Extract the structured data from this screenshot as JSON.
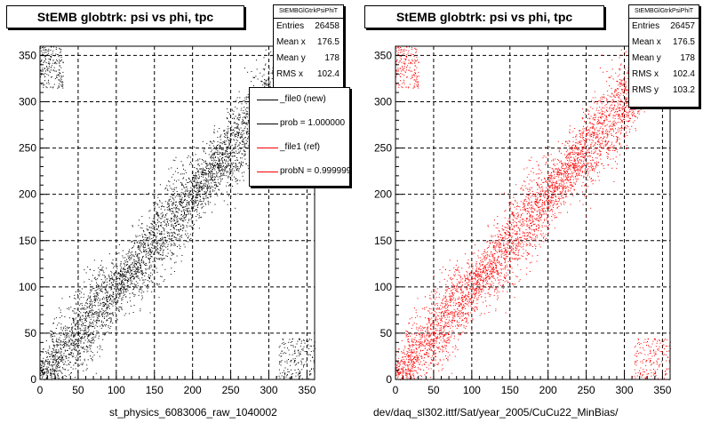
{
  "chart_data": [
    {
      "type": "scatter",
      "title": "StEMB globtrk: psi vs phi, tpc",
      "xlabel": "st_physics_6083006_raw_1040002",
      "ylabel": "",
      "xlim": [
        0,
        360
      ],
      "ylim": [
        0,
        360
      ],
      "x_ticks": [
        "0",
        "50",
        "100",
        "150",
        "200",
        "250",
        "300",
        "350"
      ],
      "y_ticks": [
        "0",
        "50",
        "100",
        "150",
        "200",
        "250",
        "300",
        "350"
      ],
      "grid": true,
      "color": "#000000",
      "distribution": "dense band along psi = phi, with wrap-around corners near (0,360) and (360,0)",
      "stats": {
        "name": "StEMBGlGtrkPsiPhiT",
        "entries": "26458",
        "mean_x": "176.5",
        "mean_y": "178",
        "rms_x": "102.4"
      },
      "legend": {
        "placement": "top-right",
        "entries": [
          {
            "label": "_file0 (new)",
            "color": "#000000"
          },
          {
            "label": "prob = 1.000000",
            "color": "#000000"
          },
          {
            "label": "_file1 (ref)",
            "color": "#ff0000"
          },
          {
            "label": "probN = 0.999999",
            "color": "#ff0000"
          }
        ]
      }
    },
    {
      "type": "scatter",
      "title": "StEMB globtrk: psi vs phi, tpc",
      "xlabel": "dev/daq_sl302.ittf/Sat/year_2005/CuCu22_MinBias/",
      "ylabel": "",
      "xlim": [
        0,
        360
      ],
      "ylim": [
        0,
        360
      ],
      "x_ticks": [
        "0",
        "50",
        "100",
        "150",
        "200",
        "250",
        "300",
        "350"
      ],
      "y_ticks": [
        "0",
        "50",
        "100",
        "150",
        "200",
        "250",
        "300",
        "350"
      ],
      "grid": true,
      "color": "#ff0000",
      "distribution": "dense band along psi = phi, with wrap-around corners near (0,360) and (360,0)",
      "stats": {
        "name": "StEMBGlGtrkPsiPhiT",
        "entries": "26457",
        "mean_x": "176.5",
        "mean_y": "178",
        "rms_x": "102.4",
        "rms_y": "103.2"
      }
    }
  ],
  "labels": {
    "entries": "Entries",
    "mean_x": "Mean x",
    "mean_y": "Mean y",
    "rms_x": "RMS x",
    "rms_y": "RMS y"
  }
}
